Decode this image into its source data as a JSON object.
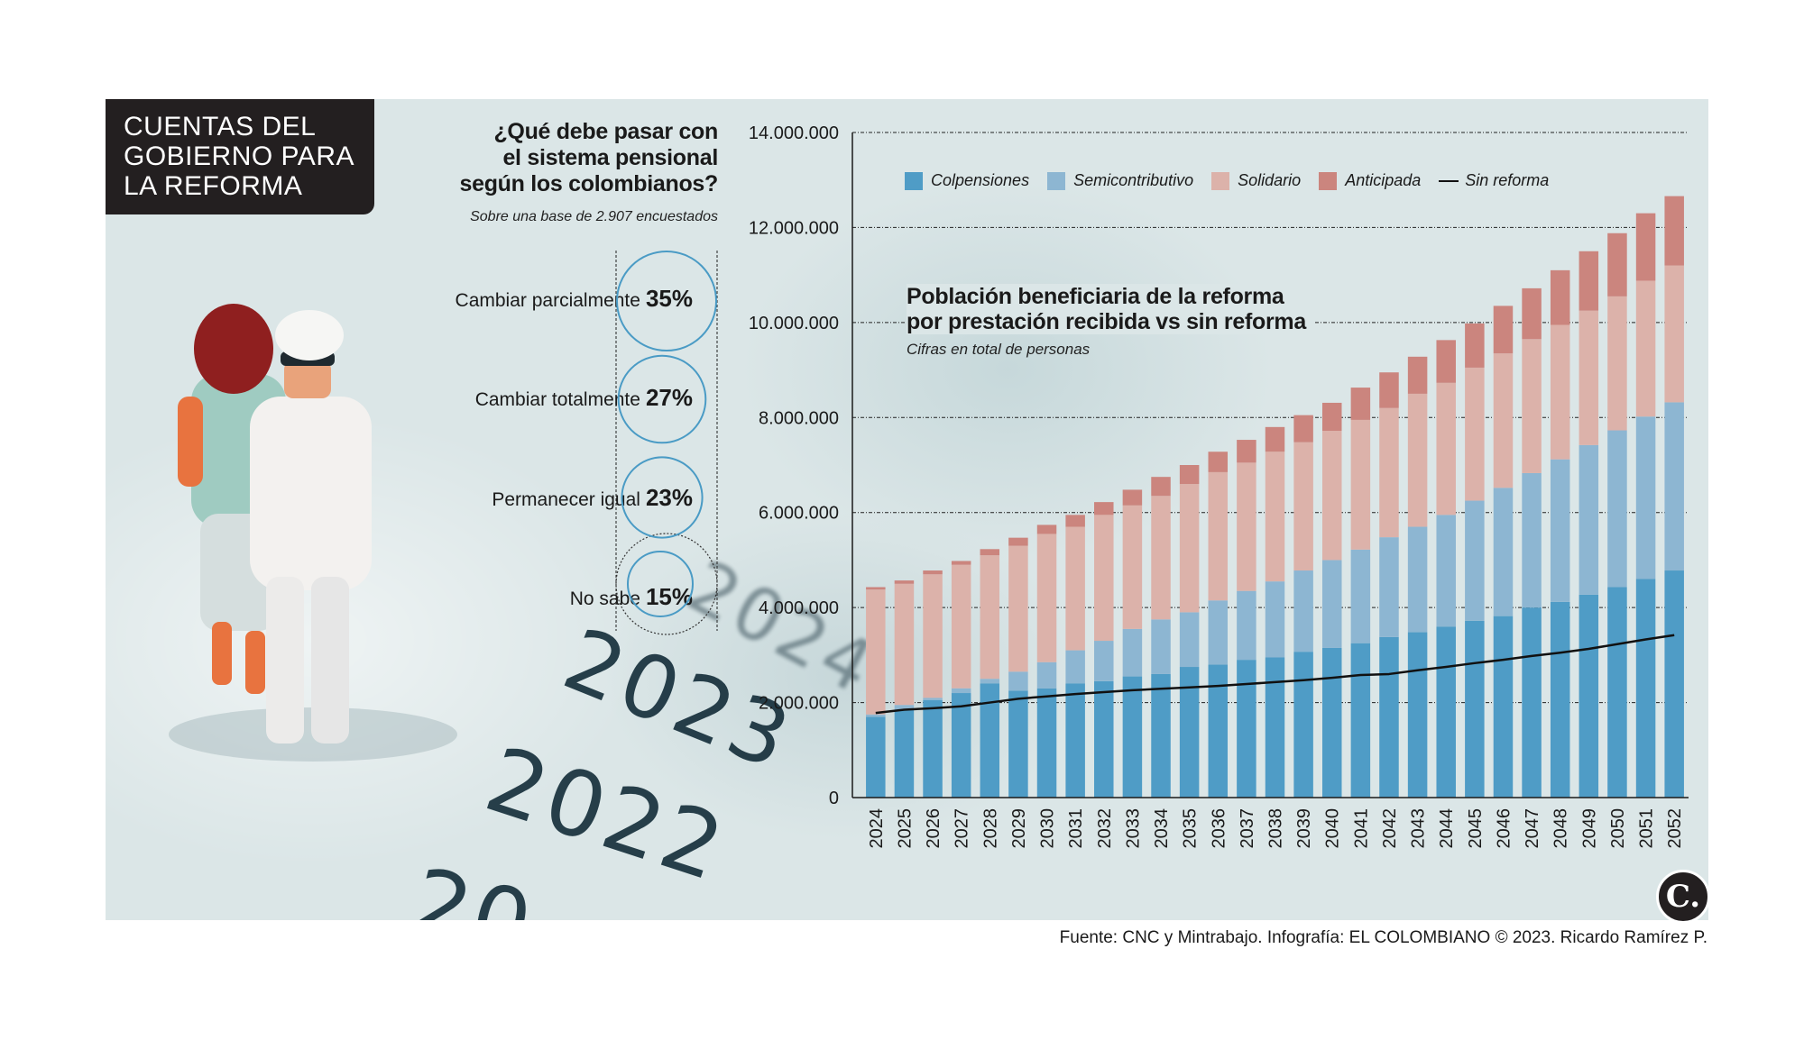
{
  "header": {
    "section_title": "CUENTAS DEL GOBIERNO PARA LA REFORMA",
    "section_title_lines": [
      "CUENTAS DEL",
      "GOBIERNO PARA",
      "LA REFORMA"
    ]
  },
  "background": {
    "year_numbers": [
      "2024",
      "2023",
      "2022",
      "20"
    ]
  },
  "survey": {
    "title_lines": [
      "¿Qué debe pasar con",
      "el sistema pensional",
      "según los colombianos?"
    ],
    "subtitle": "Sobre una base de 2.907 encuestados",
    "circle_color": "#4a9bc5",
    "items": [
      {
        "label": "Cambiar parcialmente",
        "percent": 35,
        "percent_label": "35%"
      },
      {
        "label": "Cambiar totalmente",
        "percent": 27,
        "percent_label": "27%"
      },
      {
        "label": "Permanecer igual",
        "percent": 23,
        "percent_label": "23%"
      },
      {
        "label": "No sabe",
        "percent": 15,
        "percent_label": "15%"
      }
    ]
  },
  "chart_data": {
    "type": "bar",
    "stacked": true,
    "title": "Población beneficiaria de la reforma por prestación recibida vs sin reforma",
    "title_lines": [
      "Población beneficiaria de la reforma",
      "por prestación recibida vs sin reforma"
    ],
    "subtitle": "Cifras en total de personas",
    "xlabel": "",
    "ylabel": "",
    "ylim": [
      0,
      14000000
    ],
    "yticks": [
      0,
      2000000,
      4000000,
      6000000,
      8000000,
      10000000,
      12000000,
      14000000
    ],
    "ytick_labels": [
      "0",
      "2.000.000",
      "4.000.000",
      "6.000.000",
      "8.000.000",
      "10.000.000",
      "12.000.000",
      "14.000.000"
    ],
    "grid": true,
    "legend_position": "top",
    "categories": [
      "2024",
      "2025",
      "2026",
      "2027",
      "2028",
      "2029",
      "2030",
      "2031",
      "2032",
      "2033",
      "2034",
      "2035",
      "2036",
      "2037",
      "2038",
      "2039",
      "2040",
      "2041",
      "2042",
      "2043",
      "2044",
      "2045",
      "2046",
      "2047",
      "2048",
      "2049",
      "2050",
      "2051",
      "2052"
    ],
    "series": [
      {
        "name": "Colpensiones",
        "color": "#4f9cc6",
        "values": [
          1700000,
          1850000,
          2050000,
          2200000,
          2400000,
          2250000,
          2300000,
          2400000,
          2450000,
          2550000,
          2600000,
          2750000,
          2800000,
          2900000,
          2950000,
          3070000,
          3150000,
          3250000,
          3380000,
          3480000,
          3600000,
          3720000,
          3820000,
          4000000,
          4120000,
          4270000,
          4430000,
          4600000,
          4780000
        ]
      },
      {
        "name": "Semicontributivo",
        "color": "#8db6d2",
        "values": [
          50000,
          100000,
          50000,
          100000,
          100000,
          400000,
          550000,
          700000,
          850000,
          1000000,
          1150000,
          1150000,
          1350000,
          1450000,
          1600000,
          1710000,
          1850000,
          1970000,
          2100000,
          2220000,
          2350000,
          2530000,
          2700000,
          2830000,
          3000000,
          3150000,
          3300000,
          3420000,
          3540000
        ]
      },
      {
        "name": "Solidario",
        "color": "#dcb2aa",
        "values": [
          2630000,
          2550000,
          2600000,
          2600000,
          2600000,
          2650000,
          2700000,
          2600000,
          2650000,
          2600000,
          2600000,
          2700000,
          2700000,
          2700000,
          2730000,
          2700000,
          2720000,
          2730000,
          2720000,
          2800000,
          2780000,
          2800000,
          2830000,
          2820000,
          2830000,
          2830000,
          2820000,
          2860000,
          2880000
        ]
      },
      {
        "name": "Anticipada",
        "color": "#cb857e",
        "values": [
          50000,
          70000,
          80000,
          80000,
          130000,
          170000,
          190000,
          250000,
          270000,
          330000,
          400000,
          400000,
          430000,
          480000,
          520000,
          570000,
          590000,
          680000,
          750000,
          780000,
          900000,
          930000,
          1000000,
          1070000,
          1150000,
          1250000,
          1330000,
          1420000,
          1460000
        ]
      }
    ],
    "line_series": {
      "name": "Sin reforma",
      "color": "#111111",
      "values": [
        1780000,
        1850000,
        1880000,
        1920000,
        2000000,
        2080000,
        2130000,
        2180000,
        2220000,
        2260000,
        2290000,
        2320000,
        2350000,
        2390000,
        2430000,
        2470000,
        2520000,
        2580000,
        2600000,
        2680000,
        2750000,
        2830000,
        2900000,
        2980000,
        3050000,
        3130000,
        3230000,
        3330000,
        3420000
      ]
    }
  },
  "footer": {
    "source": "Fuente: CNC y Mintrabajo. Infografía: EL COLOMBIANO © 2023. Ricardo Ramírez P.",
    "logo_glyph": "C."
  }
}
